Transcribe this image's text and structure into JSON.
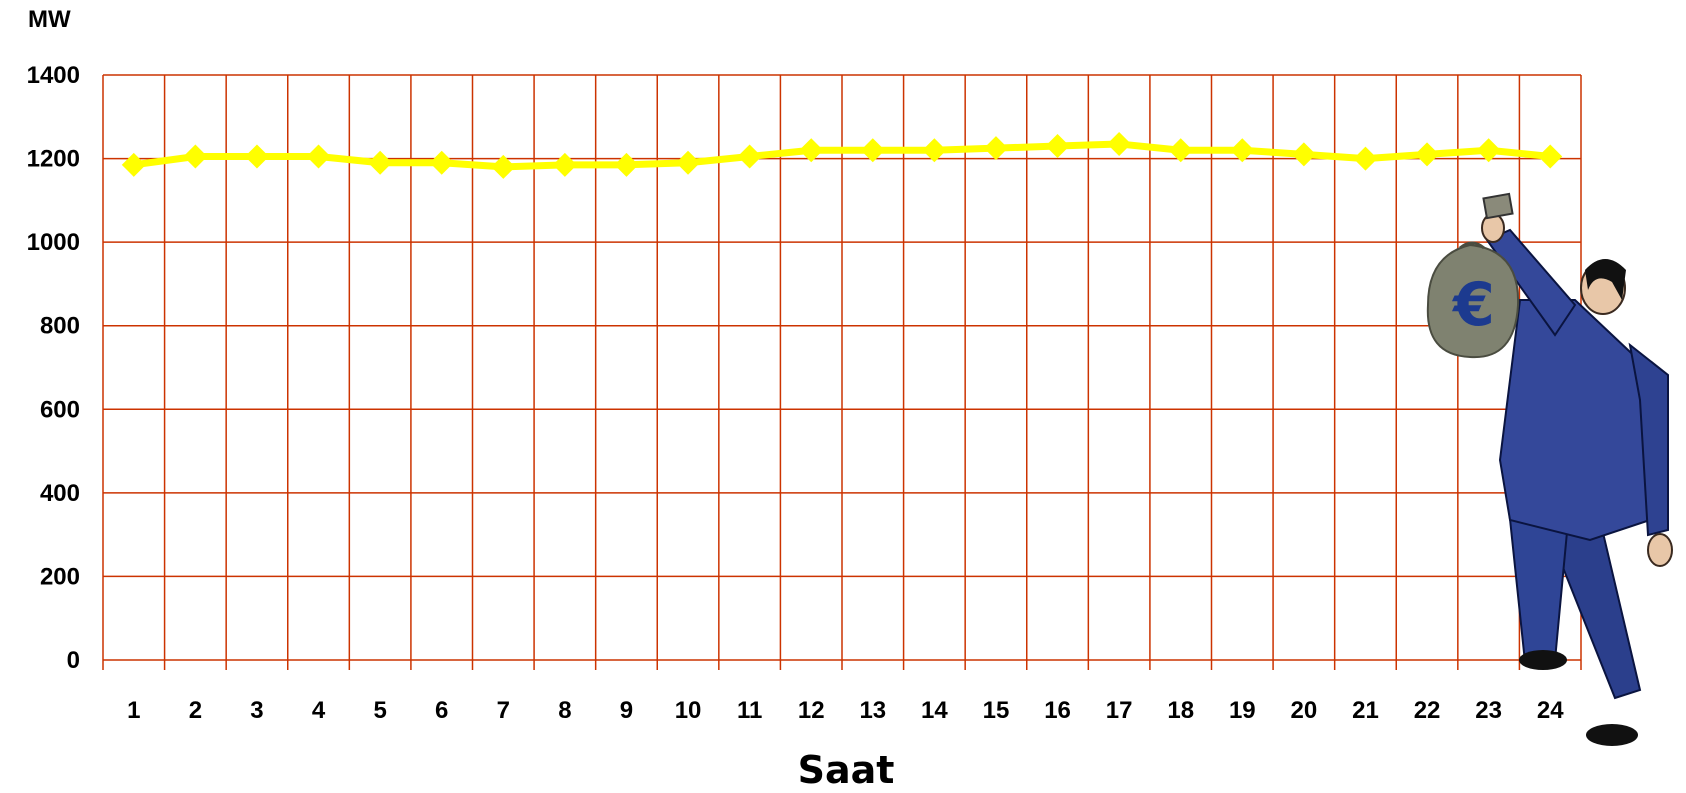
{
  "chart_data": {
    "type": "line",
    "title": "",
    "ylabel": "MW",
    "xlabel": "Saat",
    "x": [
      1,
      2,
      3,
      4,
      5,
      6,
      7,
      8,
      9,
      10,
      11,
      12,
      13,
      14,
      15,
      16,
      17,
      18,
      19,
      20,
      21,
      22,
      23,
      24
    ],
    "y_ticks": [
      0,
      200,
      400,
      600,
      800,
      1000,
      1200,
      1400
    ],
    "ylim": [
      0,
      1400
    ],
    "grid": true,
    "colors": {
      "grid": "#cc3300",
      "line": "#ffff00"
    },
    "series": [
      {
        "values": [
          1185,
          1205,
          1205,
          1205,
          1190,
          1190,
          1180,
          1185,
          1185,
          1190,
          1205,
          1220,
          1220,
          1220,
          1225,
          1230,
          1235,
          1220,
          1220,
          1210,
          1200,
          1210,
          1220,
          1205
        ]
      }
    ]
  },
  "illustration": {
    "icon": "businessman-with-money-bag-icon",
    "currency_symbol": "€"
  }
}
